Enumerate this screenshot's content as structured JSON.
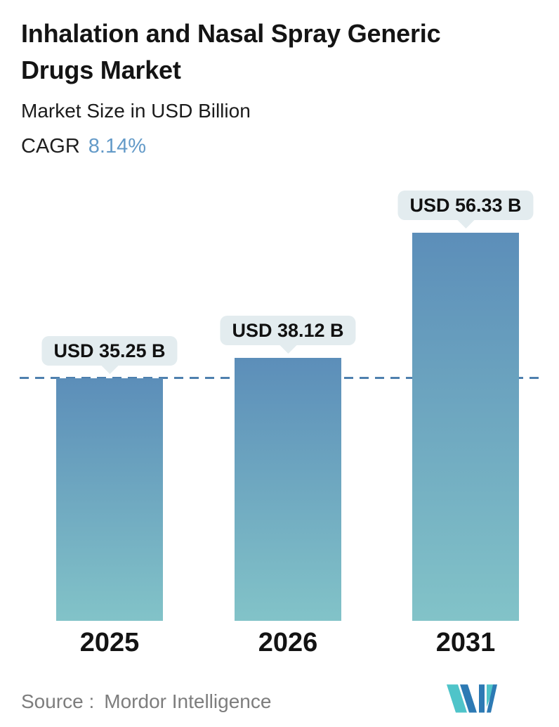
{
  "header": {
    "title": "Inhalation and Nasal Spray Generic Drugs Market",
    "subtitle": "Market Size in USD Billion",
    "cagr_label": "CAGR",
    "cagr_value": "8.14%"
  },
  "chart_data": {
    "type": "bar",
    "title": "Inhalation and Nasal Spray Generic Drugs Market",
    "subtitle": "Market Size in USD Billion",
    "unit": "USD Billion",
    "cagr_percent": 8.14,
    "categories": [
      "2025",
      "2026",
      "2031"
    ],
    "values": [
      35.25,
      38.12,
      56.33
    ],
    "value_labels": [
      "USD 35.25 B",
      "USD 38.12 B",
      "USD 56.33 B"
    ],
    "ylim": [
      0,
      60
    ],
    "grid": false,
    "legend": "none",
    "reference_line": {
      "value": 35.25,
      "style": "dashed",
      "note": "horizontal dashed line at 2025 market size level, drawn behind bars"
    }
  },
  "colors": {
    "cagr_accent": "#639ac8",
    "bar_gradient_top": "#5c8eb9",
    "bar_gradient_bottom": "#82c3c8",
    "reference_line": "#4e80ae",
    "label_pill_bg": "#e3ecef",
    "logo_blue": "#2d7ab4",
    "logo_teal": "#4fc4c9"
  },
  "footer": {
    "source_label": "Source :",
    "source_value": "Mordor Intelligence",
    "logo_name": "mordor-intelligence-logo"
  }
}
